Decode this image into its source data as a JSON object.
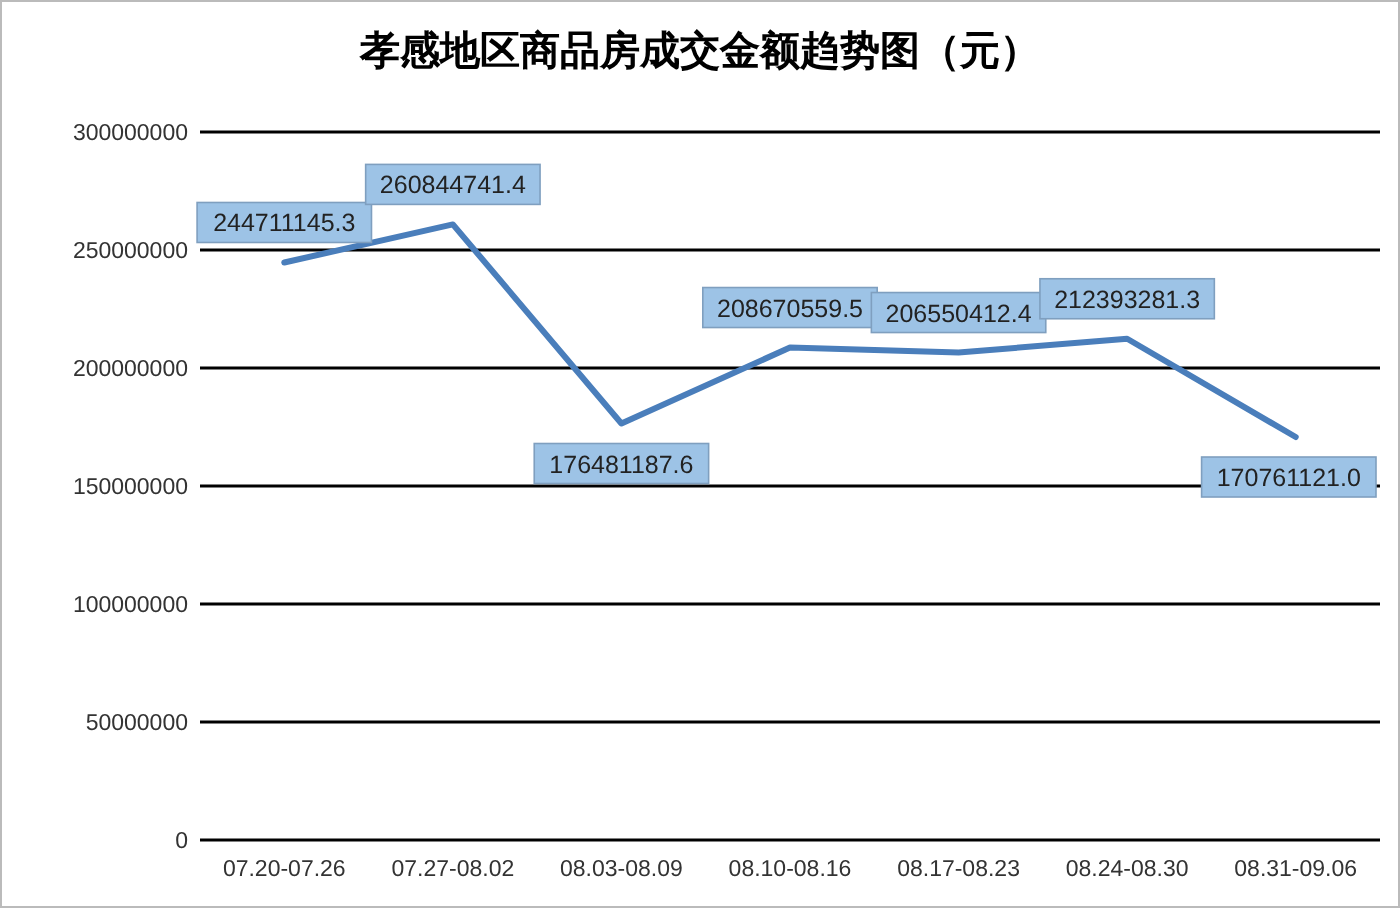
{
  "chart_data": {
    "type": "line",
    "title": "孝感地区商品房成交金额趋势图（元）",
    "categories": [
      "07.20-07.26",
      "07.27-08.02",
      "08.03-08.09",
      "08.10-08.16",
      "08.17-08.23",
      "08.24-08.30",
      "08.31-09.06"
    ],
    "series": [
      {
        "color": "#4a7ebb",
        "values": [
          244711145.3,
          260844741.4,
          176481187.6,
          208670559.5,
          206550412.4,
          212393281.3,
          170761121.0
        ],
        "value_labels": [
          "244711145.3",
          "260844741.4",
          "176481187.6",
          "208670559.5",
          "206550412.4",
          "212393281.3",
          "170761121.0"
        ]
      }
    ],
    "ylim": [
      0,
      300000000
    ],
    "yticks": [
      0,
      50000000,
      100000000,
      150000000,
      200000000,
      250000000,
      300000000
    ],
    "grid": "y",
    "marker": "none",
    "line_style": "solid"
  }
}
